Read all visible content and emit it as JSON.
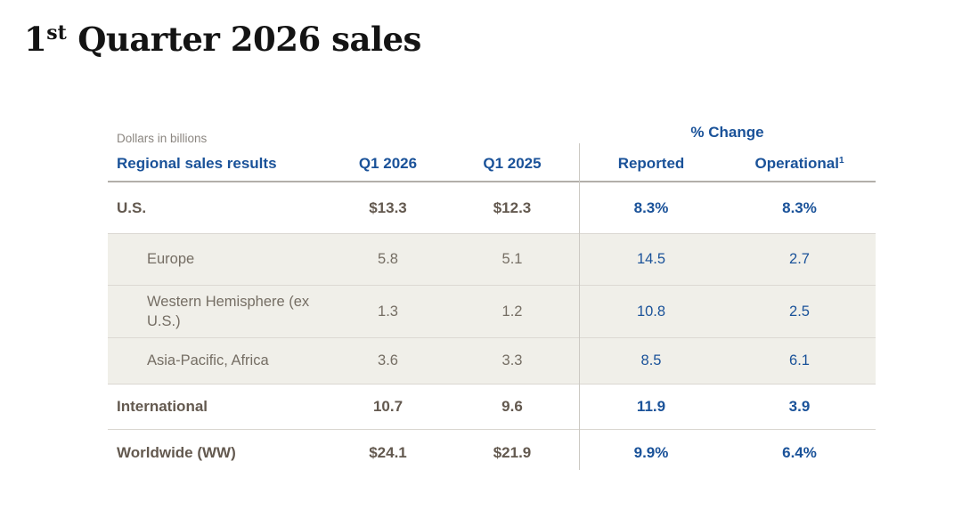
{
  "title": {
    "number": "1",
    "ordinal_suffix": "st",
    "rest": " Quarter 2026 sales"
  },
  "table": {
    "note": "Dollars in billions",
    "group_header": "% Change",
    "columns": {
      "label": "Regional sales results",
      "q1_2026": "Q1 2026",
      "q1_2025": "Q1 2025",
      "reported": "Reported",
      "operational": "Operational",
      "operational_footnote": "1"
    },
    "rows": [
      {
        "label": "U.S.",
        "q1_2026": "$13.3",
        "q1_2025": "$12.3",
        "reported": "8.3%",
        "operational": "8.3%"
      },
      {
        "label": "Europe",
        "q1_2026": "5.8",
        "q1_2025": "5.1",
        "reported": "14.5",
        "operational": "2.7"
      },
      {
        "label": "Western Hemisphere (ex U.S.)",
        "q1_2026": "1.3",
        "q1_2025": "1.2",
        "reported": "10.8",
        "operational": "2.5"
      },
      {
        "label": "Asia-Pacific, Africa",
        "q1_2026": "3.6",
        "q1_2025": "3.3",
        "reported": "8.5",
        "operational": "6.1"
      },
      {
        "label": "International",
        "q1_2026": "10.7",
        "q1_2025": "9.6",
        "reported": "11.9",
        "operational": "3.9"
      },
      {
        "label": "Worldwide (WW)",
        "q1_2026": "$24.1",
        "q1_2025": "$21.9",
        "reported": "9.9%",
        "operational": "6.4%"
      }
    ]
  },
  "colors": {
    "accent_blue": "#1a5299",
    "label_taupe": "#63594f",
    "sub_text_gray": "#756e64",
    "row_shade": "#f0efe9",
    "note_gray": "#8b8680"
  }
}
